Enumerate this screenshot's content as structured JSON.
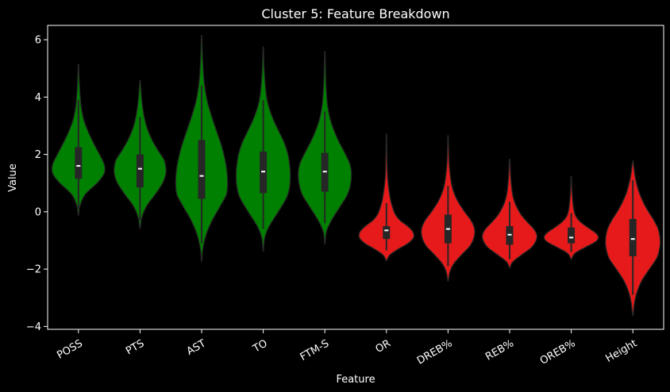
{
  "chart_data": {
    "type": "violin",
    "title": "Cluster 5: Feature Breakdown",
    "xlabel": "Feature",
    "ylabel": "Value",
    "ylim": [
      -4.1,
      6.5
    ],
    "yticks": [
      6,
      4,
      2,
      0,
      -2,
      -4
    ],
    "categories": [
      "POSS",
      "PTS",
      "AST",
      "TO",
      "FTM-S",
      "OR",
      "DREB%",
      "REB%",
      "OREB%",
      "Height"
    ],
    "colors": {
      "background": "#000000",
      "axes": "#ffffff",
      "positive_group": "#008000",
      "negative_group": "#e61a1a",
      "box": "#262626",
      "median": "#ffffff"
    },
    "violins": [
      {
        "feature": "POSS",
        "color": "green",
        "min": -0.1,
        "max": 5.1,
        "q1": 1.15,
        "median": 1.6,
        "q3": 2.25,
        "wlo": 0.1,
        "whi": 3.9,
        "profile": [
          [
            -0.1,
            0.01
          ],
          [
            0.2,
            0.05
          ],
          [
            0.6,
            0.22
          ],
          [
            1.0,
            0.62
          ],
          [
            1.3,
            0.84
          ],
          [
            1.5,
            0.88
          ],
          [
            1.7,
            0.84
          ],
          [
            2.0,
            0.7
          ],
          [
            2.4,
            0.5
          ],
          [
            2.8,
            0.32
          ],
          [
            3.2,
            0.18
          ],
          [
            3.6,
            0.1
          ],
          [
            4.0,
            0.06
          ],
          [
            4.5,
            0.03
          ],
          [
            5.1,
            0.01
          ]
        ]
      },
      {
        "feature": "PTS",
        "color": "green",
        "min": -0.55,
        "max": 4.55,
        "q1": 0.85,
        "median": 1.5,
        "q3": 2.0,
        "wlo": -0.3,
        "whi": 3.3,
        "profile": [
          [
            -0.55,
            0.01
          ],
          [
            -0.2,
            0.06
          ],
          [
            0.2,
            0.22
          ],
          [
            0.6,
            0.5
          ],
          [
            1.0,
            0.75
          ],
          [
            1.3,
            0.85
          ],
          [
            1.5,
            0.86
          ],
          [
            1.8,
            0.8
          ],
          [
            2.1,
            0.62
          ],
          [
            2.5,
            0.4
          ],
          [
            2.9,
            0.24
          ],
          [
            3.3,
            0.14
          ],
          [
            3.7,
            0.08
          ],
          [
            4.1,
            0.04
          ],
          [
            4.55,
            0.01
          ]
        ]
      },
      {
        "feature": "AST",
        "color": "green",
        "min": -1.7,
        "max": 6.1,
        "q1": 0.45,
        "median": 1.25,
        "q3": 2.5,
        "wlo": -1.1,
        "whi": 4.4,
        "profile": [
          [
            -1.7,
            0.01
          ],
          [
            -1.3,
            0.04
          ],
          [
            -0.8,
            0.15
          ],
          [
            -0.3,
            0.35
          ],
          [
            0.2,
            0.62
          ],
          [
            0.6,
            0.82
          ],
          [
            1.0,
            0.86
          ],
          [
            1.4,
            0.84
          ],
          [
            1.8,
            0.78
          ],
          [
            2.3,
            0.66
          ],
          [
            2.8,
            0.5
          ],
          [
            3.3,
            0.34
          ],
          [
            3.8,
            0.2
          ],
          [
            4.3,
            0.11
          ],
          [
            4.8,
            0.06
          ],
          [
            5.4,
            0.03
          ],
          [
            6.1,
            0.01
          ]
        ]
      },
      {
        "feature": "TO",
        "color": "green",
        "min": -1.35,
        "max": 5.7,
        "q1": 0.65,
        "median": 1.4,
        "q3": 2.1,
        "wlo": -0.6,
        "whi": 3.9,
        "profile": [
          [
            -1.35,
            0.01
          ],
          [
            -0.9,
            0.05
          ],
          [
            -0.5,
            0.2
          ],
          [
            0.0,
            0.5
          ],
          [
            0.5,
            0.78
          ],
          [
            0.9,
            0.88
          ],
          [
            1.3,
            0.9
          ],
          [
            1.6,
            0.88
          ],
          [
            2.0,
            0.82
          ],
          [
            2.4,
            0.7
          ],
          [
            2.8,
            0.52
          ],
          [
            3.2,
            0.34
          ],
          [
            3.6,
            0.2
          ],
          [
            4.0,
            0.11
          ],
          [
            4.5,
            0.06
          ],
          [
            5.0,
            0.03
          ],
          [
            5.7,
            0.01
          ]
        ]
      },
      {
        "feature": "FTM-S",
        "color": "green",
        "min": -1.1,
        "max": 5.55,
        "q1": 0.7,
        "median": 1.4,
        "q3": 2.05,
        "wlo": -0.4,
        "whi": 3.5,
        "profile": [
          [
            -1.1,
            0.01
          ],
          [
            -0.7,
            0.05
          ],
          [
            -0.3,
            0.22
          ],
          [
            0.2,
            0.52
          ],
          [
            0.6,
            0.75
          ],
          [
            1.0,
            0.86
          ],
          [
            1.4,
            0.88
          ],
          [
            1.7,
            0.82
          ],
          [
            2.1,
            0.64
          ],
          [
            2.5,
            0.44
          ],
          [
            2.9,
            0.28
          ],
          [
            3.3,
            0.16
          ],
          [
            3.8,
            0.08
          ],
          [
            4.4,
            0.04
          ],
          [
            5.0,
            0.02
          ],
          [
            5.55,
            0.01
          ]
        ]
      },
      {
        "feature": "OR",
        "color": "red",
        "min": -1.7,
        "max": 2.65,
        "q1": -0.95,
        "median": -0.65,
        "q3": -0.5,
        "wlo": -1.35,
        "whi": 0.3,
        "profile": [
          [
            -1.7,
            0.01
          ],
          [
            -1.5,
            0.12
          ],
          [
            -1.3,
            0.4
          ],
          [
            -1.1,
            0.72
          ],
          [
            -0.9,
            0.9
          ],
          [
            -0.7,
            0.88
          ],
          [
            -0.5,
            0.7
          ],
          [
            -0.3,
            0.45
          ],
          [
            -0.1,
            0.3
          ],
          [
            0.1,
            0.22
          ],
          [
            0.4,
            0.14
          ],
          [
            0.8,
            0.08
          ],
          [
            1.2,
            0.04
          ],
          [
            1.8,
            0.02
          ],
          [
            2.65,
            0.01
          ]
        ]
      },
      {
        "feature": "DREB%",
        "color": "red",
        "min": -2.4,
        "max": 2.6,
        "q1": -1.1,
        "median": -0.6,
        "q3": -0.1,
        "wlo": -1.9,
        "whi": 0.9,
        "profile": [
          [
            -2.4,
            0.01
          ],
          [
            -2.1,
            0.06
          ],
          [
            -1.8,
            0.2
          ],
          [
            -1.5,
            0.45
          ],
          [
            -1.2,
            0.72
          ],
          [
            -0.9,
            0.86
          ],
          [
            -0.6,
            0.88
          ],
          [
            -0.3,
            0.76
          ],
          [
            0.0,
            0.55
          ],
          [
            0.3,
            0.36
          ],
          [
            0.6,
            0.22
          ],
          [
            0.9,
            0.13
          ],
          [
            1.3,
            0.07
          ],
          [
            1.8,
            0.03
          ],
          [
            2.6,
            0.01
          ]
        ]
      },
      {
        "feature": "REB%",
        "color": "red",
        "min": -1.95,
        "max": 1.8,
        "q1": -1.15,
        "median": -0.8,
        "q3": -0.5,
        "wlo": -1.65,
        "whi": 0.35,
        "profile": [
          [
            -1.95,
            0.01
          ],
          [
            -1.75,
            0.1
          ],
          [
            -1.5,
            0.4
          ],
          [
            -1.25,
            0.72
          ],
          [
            -1.0,
            0.88
          ],
          [
            -0.8,
            0.9
          ],
          [
            -0.6,
            0.8
          ],
          [
            -0.35,
            0.58
          ],
          [
            -0.1,
            0.38
          ],
          [
            0.2,
            0.22
          ],
          [
            0.5,
            0.12
          ],
          [
            0.9,
            0.06
          ],
          [
            1.3,
            0.03
          ],
          [
            1.8,
            0.01
          ]
        ]
      },
      {
        "feature": "OREB%",
        "color": "red",
        "min": -1.65,
        "max": 1.2,
        "q1": -1.1,
        "median": -0.9,
        "q3": -0.55,
        "wlo": -1.4,
        "whi": -0.05,
        "profile": [
          [
            -1.65,
            0.01
          ],
          [
            -1.45,
            0.12
          ],
          [
            -1.25,
            0.45
          ],
          [
            -1.05,
            0.8
          ],
          [
            -0.9,
            0.9
          ],
          [
            -0.75,
            0.82
          ],
          [
            -0.55,
            0.55
          ],
          [
            -0.35,
            0.3
          ],
          [
            -0.15,
            0.15
          ],
          [
            0.1,
            0.08
          ],
          [
            0.5,
            0.04
          ],
          [
            0.8,
            0.02
          ],
          [
            1.2,
            0.01
          ]
        ]
      },
      {
        "feature": "Height",
        "color": "red",
        "min": -3.6,
        "max": 1.75,
        "q1": -1.55,
        "median": -0.95,
        "q3": -0.25,
        "wlo": -2.9,
        "whi": 1.1,
        "profile": [
          [
            -3.6,
            0.01
          ],
          [
            -3.2,
            0.05
          ],
          [
            -2.8,
            0.14
          ],
          [
            -2.4,
            0.3
          ],
          [
            -2.0,
            0.55
          ],
          [
            -1.6,
            0.8
          ],
          [
            -1.2,
            0.9
          ],
          [
            -0.9,
            0.9
          ],
          [
            -0.6,
            0.84
          ],
          [
            -0.3,
            0.7
          ],
          [
            0.0,
            0.52
          ],
          [
            0.3,
            0.36
          ],
          [
            0.7,
            0.2
          ],
          [
            1.1,
            0.1
          ],
          [
            1.4,
            0.05
          ],
          [
            1.75,
            0.01
          ]
        ]
      }
    ]
  }
}
